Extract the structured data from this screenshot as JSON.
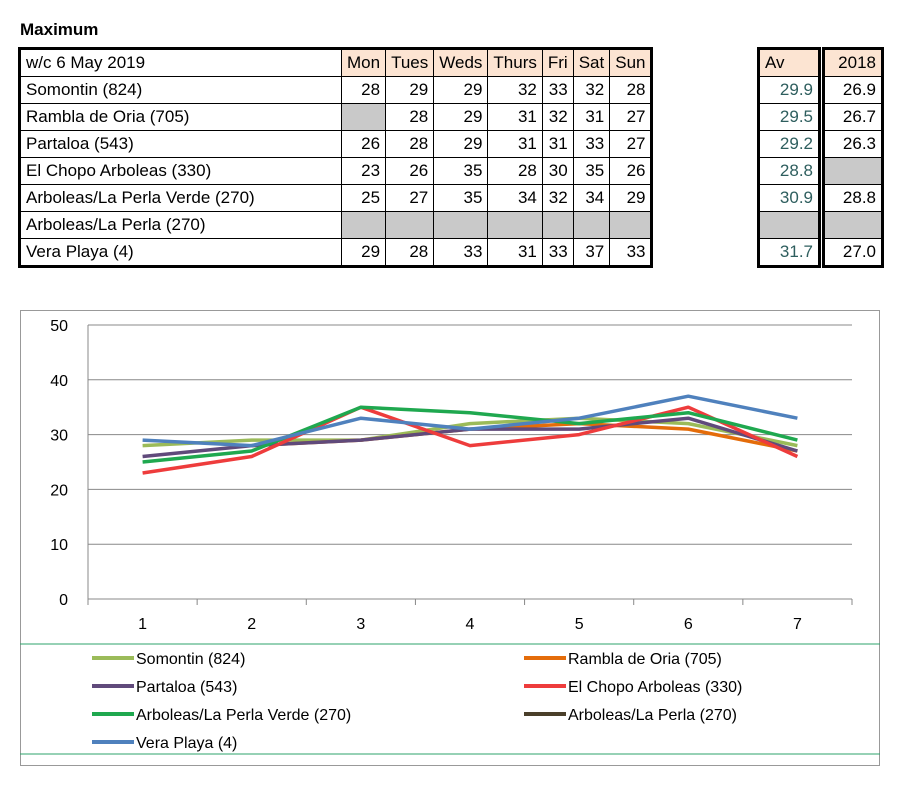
{
  "title": "Maximum",
  "table": {
    "week_label": "w/c 6 May 2019",
    "days": [
      "Mon",
      "Tues",
      "Weds",
      "Thurs",
      "Fri",
      "Sat",
      "Sun"
    ],
    "av_label": "Av",
    "prev_label": "2018",
    "rows": [
      {
        "station": "Somontin (824)",
        "values": [
          "28",
          "29",
          "29",
          "32",
          "33",
          "32",
          "28"
        ],
        "av": "29.9",
        "prev": "26.9"
      },
      {
        "station": "Rambla de Oria (705)",
        "values": [
          "",
          "28",
          "29",
          "31",
          "32",
          "31",
          "27"
        ],
        "av": "29.5",
        "prev": "26.7"
      },
      {
        "station": "Partaloa (543)",
        "values": [
          "26",
          "28",
          "29",
          "31",
          "31",
          "33",
          "27"
        ],
        "av": "29.2",
        "prev": "26.3"
      },
      {
        "station": "El Chopo  Arboleas (330)",
        "values": [
          "23",
          "26",
          "35",
          "28",
          "30",
          "35",
          "26"
        ],
        "av": "28.8",
        "prev": ""
      },
      {
        "station": "Arboleas/La Perla Verde (270)",
        "values": [
          "25",
          "27",
          "35",
          "34",
          "32",
          "34",
          "29"
        ],
        "av": "30.9",
        "prev": "28.8"
      },
      {
        "station": "Arboleas/La Perla (270)",
        "values": [
          "",
          "",
          "",
          "",
          "",
          "",
          ""
        ],
        "av": "",
        "prev": ""
      },
      {
        "station": "Vera Playa (4)",
        "values": [
          "29",
          "28",
          "33",
          "31",
          "33",
          "37",
          "33"
        ],
        "av": "31.7",
        "prev": "27.0"
      }
    ]
  },
  "chart_data": {
    "type": "line",
    "x": [
      1,
      2,
      3,
      4,
      5,
      6,
      7
    ],
    "ylim": [
      0,
      50
    ],
    "yticks": [
      0,
      10,
      20,
      30,
      40,
      50
    ],
    "grid": true,
    "legend": "bottom",
    "series": [
      {
        "name": "Somontin (824)",
        "color": "#9bbb59",
        "values": [
          28,
          29,
          29,
          32,
          33,
          32,
          28
        ]
      },
      {
        "name": "Rambla de Oria (705)",
        "color": "#e46c0a",
        "values": [
          null,
          28,
          29,
          31,
          32,
          31,
          27
        ]
      },
      {
        "name": "Partaloa (543)",
        "color": "#604a7b",
        "values": [
          26,
          28,
          29,
          31,
          31,
          33,
          27
        ]
      },
      {
        "name": "El Chopo  Arboleas (330)",
        "color": "#ee3c3c",
        "values": [
          23,
          26,
          35,
          28,
          30,
          35,
          26
        ]
      },
      {
        "name": "Arboleas/La Perla Verde (270)",
        "color": "#1fa84f",
        "values": [
          25,
          27,
          35,
          34,
          32,
          34,
          29
        ]
      },
      {
        "name": "Arboleas/La Perla (270)",
        "color": "#4a3f2a",
        "values": [
          null,
          null,
          null,
          null,
          null,
          null,
          null
        ]
      },
      {
        "name": "Vera Playa (4)",
        "color": "#4f81bd",
        "values": [
          29,
          28,
          33,
          31,
          33,
          37,
          33
        ]
      }
    ]
  }
}
